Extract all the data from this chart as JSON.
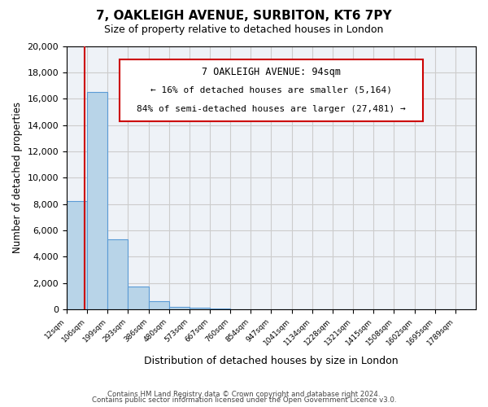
{
  "title": "7, OAKLEIGH AVENUE, SURBITON, KT6 7PY",
  "subtitle": "Size of property relative to detached houses in London",
  "bar_heights": [
    8200,
    16500,
    5300,
    1750,
    600,
    200,
    100,
    50,
    0,
    0,
    0,
    0,
    0,
    0,
    0,
    0,
    0,
    0,
    0,
    0
  ],
  "bin_labels": [
    "12sqm",
    "106sqm",
    "199sqm",
    "293sqm",
    "386sqm",
    "480sqm",
    "573sqm",
    "667sqm",
    "760sqm",
    "854sqm",
    "947sqm",
    "1041sqm",
    "1134sqm",
    "1228sqm",
    "1321sqm",
    "1415sqm",
    "1508sqm",
    "1602sqm",
    "1695sqm",
    "1789sqm"
  ],
  "bar_color": "#b8d4e8",
  "bar_edge_color": "#5b9bd5",
  "ylim_min": 0,
  "ylim_max": 20000,
  "yticks": [
    0,
    2000,
    4000,
    6000,
    8000,
    10000,
    12000,
    14000,
    16000,
    18000,
    20000
  ],
  "ylabel": "Number of detached properties",
  "xlabel": "Distribution of detached houses by size in London",
  "marker_label": "7 OAKLEIGH AVENUE: 94sqm",
  "marker_line1": "← 16% of detached houses are smaller (5,164)",
  "marker_line2": "84% of semi-detached houses are larger (27,481) →",
  "annotation_box_color": "#ffffff",
  "annotation_box_edge": "#cc0000",
  "marker_line_color": "#cc0000",
  "grid_color": "#cccccc",
  "background_color": "#eef2f7",
  "footer1": "Contains HM Land Registry data © Crown copyright and database right 2024.",
  "footer2": "Contains public sector information licensed under the Open Government Licence v3.0."
}
